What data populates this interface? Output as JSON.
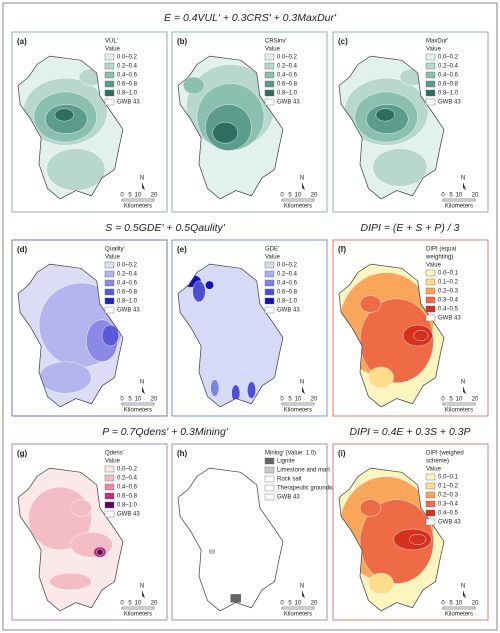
{
  "formulas": [
    "E = 0.4VUL' + 0.3CRS' + 0.3MaxDur'",
    "S = 0.5GDE' + 0.5Qaulity'",
    "DIPI = (E + S + P) / 3",
    "P = 0.7Qdens' + 0.3Mining'",
    "DIPI = 0.4E + 0.3S + 0.3P"
  ],
  "scale": {
    "ticks": [
      "0",
      "5",
      "10",
      "20"
    ],
    "unit": "Kilometers",
    "north": "N"
  },
  "panels": [
    {
      "label": "(a)",
      "legend_title": [
        "VUL'",
        "Value"
      ],
      "legend_items": [
        "0.0–0.2",
        "0.2–0.4",
        "0.4–0.6",
        "0.6–0.8",
        "0.8–1.0",
        "GWB 43"
      ],
      "colors": [
        "#e3f1ec",
        "#b8d8cd",
        "#8bbfb0",
        "#5c9c8c",
        "#2e6e60",
        "#ffffff"
      ]
    },
    {
      "label": "(b)",
      "legend_title": [
        "CRSinv'",
        "Value"
      ],
      "legend_items": [
        "0.0–0.2",
        "0.2–0.4",
        "0.4–0.6",
        "0.6–0.8",
        "0.8–1.0",
        "GWB 43"
      ],
      "colors": [
        "#e3f1ec",
        "#b8d8cd",
        "#8bbfb0",
        "#5c9c8c",
        "#2e6e60",
        "#ffffff"
      ]
    },
    {
      "label": "(c)",
      "legend_title": [
        "MaxDur'",
        "Value"
      ],
      "legend_items": [
        "0.0–0.2",
        "0.2–0.4",
        "0.4–0.6",
        "0.6–0.8",
        "0.8–1.0",
        "GWB 43"
      ],
      "colors": [
        "#e3f1ec",
        "#b8d8cd",
        "#8bbfb0",
        "#5c9c8c",
        "#2e6e60",
        "#ffffff"
      ]
    },
    {
      "label": "(d)",
      "legend_title": [
        "Quality'",
        "Value"
      ],
      "legend_items": [
        "0.0–0.2",
        "0.2–0.4",
        "0.4–0.6",
        "0.6–0.8",
        "0.8–1.0",
        "GWB 43"
      ],
      "colors": [
        "#dcdcf6",
        "#b4b4ef",
        "#8a8ae6",
        "#5a5ad8",
        "#2020c8",
        "#ffffff"
      ]
    },
    {
      "label": "(e)",
      "legend_title": [
        "GDE'",
        "Value"
      ],
      "legend_items": [
        "0.0–0.2",
        "0.2–0.4",
        "0.4–0.6",
        "0.6–0.8",
        "0.8–1.0",
        "GWB 43"
      ],
      "colors": [
        "#d6daf6",
        "#a8b0ee",
        "#7a84e4",
        "#4a50d6",
        "#1010c0",
        "#ffffff"
      ]
    },
    {
      "label": "(f)",
      "legend_title": [
        "DIPI (equal",
        "weighting)",
        "Value"
      ],
      "legend_items": [
        "0.0–0.1",
        "0.1–0.2",
        "0.2–0.3",
        "0.3–0.4",
        "0.4–0.5",
        "GWB 43"
      ],
      "colors": [
        "#fdf5c0",
        "#fddc8a",
        "#f9a65a",
        "#ef6b45",
        "#d7301f",
        "#ffffff"
      ]
    },
    {
      "label": "(g)",
      "legend_title": [
        "Qdens'",
        "Value"
      ],
      "legend_items": [
        "0.0–0.2",
        "0.2–0.4",
        "0.4–0.6",
        "0.6–0.8",
        "0.8–1.0",
        "GWB 43"
      ],
      "colors": [
        "#fbe8e8",
        "#f4bcc4",
        "#e888a8",
        "#c0307a",
        "#5a0a5a",
        "#ffffff"
      ]
    },
    {
      "label": "(h)",
      "legend_title": [
        "Mining' (Value: 1.0)"
      ],
      "legend_items": [
        "Lignite",
        "Limestone and marl",
        "Rock salt",
        "Therapeutic groundwater",
        "GWB 43"
      ],
      "colors": [
        "#666666",
        "#cccccc",
        "#ffffff",
        "#ffffff",
        "#ffffff"
      ]
    },
    {
      "label": "(i)",
      "legend_title": [
        "DIPI (weighed",
        "scheme)",
        "Value"
      ],
      "legend_items": [
        "0.0–0.1",
        "0.1–0.2",
        "0.2–0.3",
        "0.3–0.4",
        "0.4–0.5",
        "GWB 43"
      ],
      "colors": [
        "#fdf5c0",
        "#fddc8a",
        "#f9a65a",
        "#ef6b45",
        "#d7301f",
        "#ffffff"
      ]
    }
  ]
}
